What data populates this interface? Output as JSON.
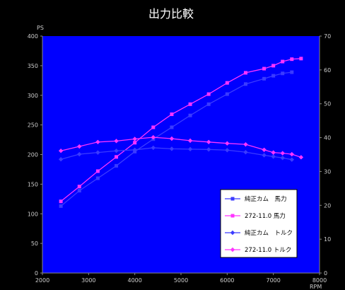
{
  "chart_data": {
    "type": "line",
    "title": "出力比較",
    "ylabel_left": "PS",
    "ylabel_right": "",
    "xlabel": "RPM",
    "xlim": [
      2000,
      8000
    ],
    "ylim_left": [
      0,
      400
    ],
    "ylim_right": [
      0,
      70
    ],
    "xticks": [
      2000,
      3000,
      4000,
      5000,
      6000,
      7000,
      8000
    ],
    "yticks_left": [
      0,
      50,
      100,
      150,
      200,
      250,
      300,
      350,
      400
    ],
    "yticks_right": [
      0,
      10,
      20,
      30,
      40,
      50,
      60,
      70
    ],
    "grid": false,
    "legend_position": "bottom-right",
    "series": [
      {
        "name": "純正カム　馬力",
        "axis": "left",
        "color": "#3b3bff",
        "marker": "square",
        "x": [
          2400,
          2800,
          3200,
          3600,
          4000,
          4400,
          4800,
          5200,
          5600,
          6000,
          6400,
          6800,
          7000,
          7200,
          7400
        ],
        "y": [
          113,
          139,
          160,
          181,
          205,
          226,
          246,
          266,
          285,
          302,
          319,
          328,
          333,
          337,
          339
        ]
      },
      {
        "name": "272-11.0 馬力",
        "axis": "left",
        "color": "#ff33ff",
        "marker": "square",
        "x": [
          2400,
          2800,
          3200,
          3600,
          4000,
          4400,
          4800,
          5200,
          5600,
          6000,
          6400,
          6800,
          7000,
          7200,
          7400,
          7600
        ],
        "y": [
          121,
          146,
          172,
          196,
          220,
          246,
          268,
          285,
          302,
          321,
          338,
          345,
          350,
          357,
          361,
          362
        ]
      },
      {
        "name": "純正カム　トルク",
        "axis": "right",
        "color": "#3b3bff",
        "marker": "diamond",
        "x": [
          2400,
          2800,
          3200,
          3600,
          4000,
          4400,
          4800,
          5200,
          5600,
          6000,
          6400,
          6800,
          7000,
          7200,
          7400
        ],
        "y": [
          33.6,
          35.1,
          35.6,
          36.1,
          36.4,
          37.0,
          36.7,
          36.6,
          36.5,
          36.3,
          35.7,
          34.8,
          34.4,
          34.0,
          33.5
        ]
      },
      {
        "name": "272-11.0 トルク",
        "axis": "right",
        "color": "#ff33ff",
        "marker": "diamond",
        "x": [
          2400,
          2800,
          3200,
          3600,
          4000,
          4400,
          4800,
          5200,
          5600,
          6000,
          6400,
          6800,
          7000,
          7200,
          7400,
          7600
        ],
        "y": [
          36.1,
          37.4,
          38.7,
          39.0,
          39.6,
          40.1,
          39.7,
          39.1,
          38.7,
          38.3,
          38.0,
          36.4,
          35.6,
          35.4,
          35.1,
          34.2
        ]
      }
    ]
  }
}
